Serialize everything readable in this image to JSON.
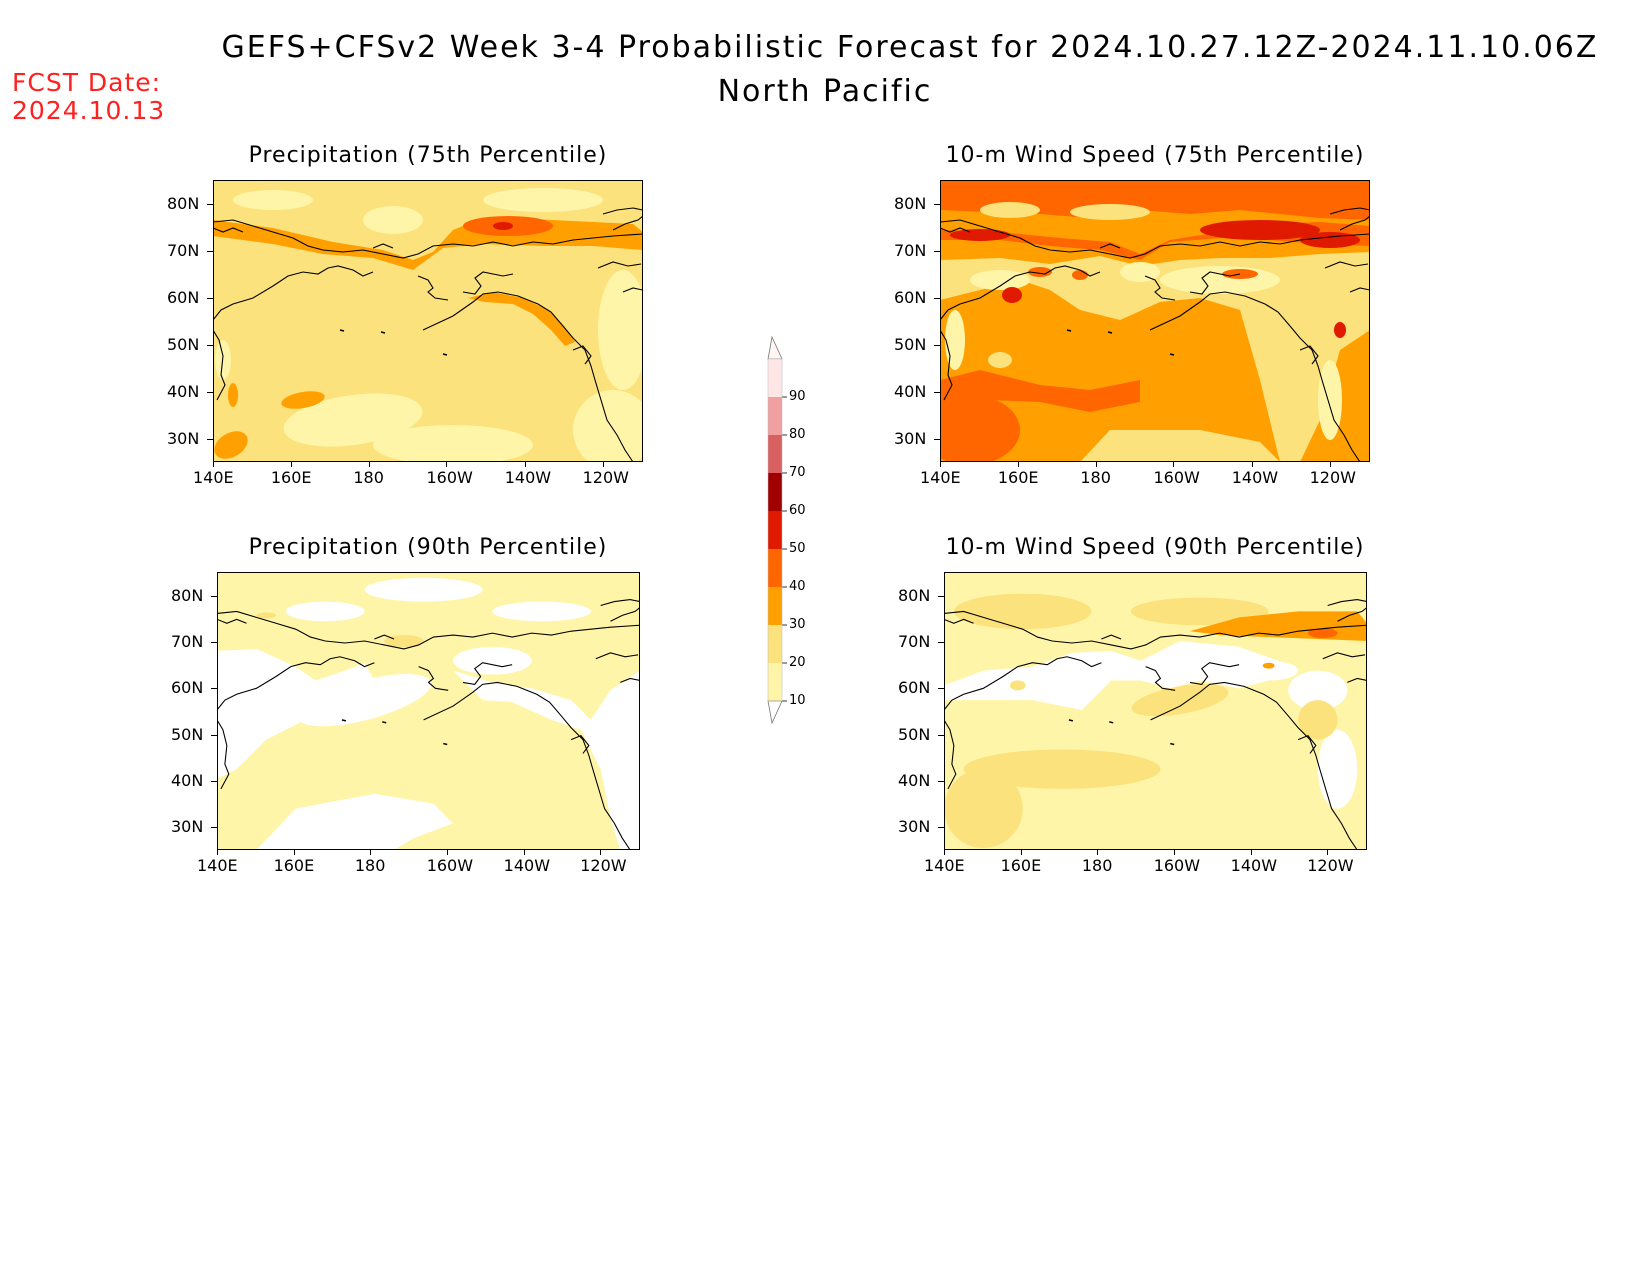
{
  "header": {
    "title": "GEFS+CFSv2 Week 3-4 Probabilistic Forecast for 2024.10.27.12Z-2024.11.10.06Z",
    "subtitle": "North Pacific",
    "fcst_label": "FCST Date:",
    "fcst_value": "2024.10.13"
  },
  "colors": {
    "c0": "#ffffff",
    "c10": "#fff5a8",
    "c20": "#fbe27c",
    "c30": "#ffa000",
    "c40": "#ff6600",
    "c50": "#e01a00",
    "c60": "#a00000",
    "c70": "#d86060",
    "c80": "#f0a0a0",
    "c90": "#ffe6e6"
  },
  "axes": {
    "lat_labels": [
      "80N",
      "70N",
      "60N",
      "50N",
      "40N",
      "30N"
    ],
    "lon_labels": [
      "140E",
      "160E",
      "180",
      "160W",
      "140W",
      "120W"
    ]
  },
  "colorbar": {
    "levels": [
      "90",
      "80",
      "70",
      "60",
      "50",
      "40",
      "30",
      "20",
      "10"
    ]
  },
  "panels": [
    {
      "id": "precip75",
      "title": "Precipitation (75th Percentile)",
      "background": "20"
    },
    {
      "id": "wind75",
      "title": "10-m Wind Speed (75th Percentile)",
      "background": "30"
    },
    {
      "id": "precip90",
      "title": "Precipitation (90th Percentile)",
      "background": "10"
    },
    {
      "id": "wind90",
      "title": "10-m Wind Speed (90th Percentile)",
      "background": "10"
    }
  ]
}
